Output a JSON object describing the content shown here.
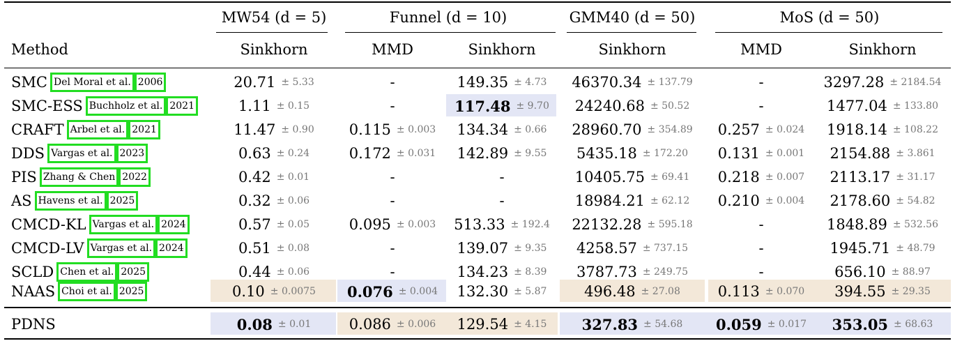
{
  "header": {
    "method_label": "Method",
    "groups": [
      {
        "title": "MW54 (d = 5)",
        "subs": [
          "Sinkhorn"
        ]
      },
      {
        "title": "Funnel (d = 10)",
        "subs": [
          "MMD",
          "Sinkhorn"
        ]
      },
      {
        "title": "GMM40 (d = 50)",
        "subs": [
          "Sinkhorn"
        ]
      },
      {
        "title": "MoS (d = 50)",
        "subs": [
          "MMD",
          "Sinkhorn"
        ]
      }
    ]
  },
  "rows": [
    {
      "method": "SMC",
      "cite_a": "Del Moral et al.",
      "cite_b": "2006",
      "cells": [
        [
          "20.71",
          "± 5.33"
        ],
        [
          "-",
          ""
        ],
        [
          "149.35",
          "± 4.73"
        ],
        [
          "46370.34",
          "± 137.79"
        ],
        [
          "-",
          ""
        ],
        [
          "3297.28",
          "± 2184.54"
        ]
      ]
    },
    {
      "method": "SMC-ESS",
      "cite_a": "Buchholz et al.",
      "cite_b": "2021",
      "cells": [
        [
          "1.11",
          "± 0.15"
        ],
        [
          "-",
          ""
        ],
        [
          "117.48",
          "± 9.70"
        ],
        [
          "24240.68",
          "± 50.52"
        ],
        [
          "-",
          ""
        ],
        [
          "1477.04",
          "± 133.80"
        ]
      ]
    },
    {
      "method": "CRAFT",
      "cite_a": "Arbel et al.",
      "cite_b": "2021",
      "cells": [
        [
          "11.47",
          "± 0.90"
        ],
        [
          "0.115",
          "± 0.003"
        ],
        [
          "134.34",
          "± 0.66"
        ],
        [
          "28960.70",
          "± 354.89"
        ],
        [
          "0.257",
          "± 0.024"
        ],
        [
          "1918.14",
          "± 108.22"
        ]
      ]
    },
    {
      "method": "DDS",
      "cite_a": "Vargas et al.",
      "cite_b": "2023",
      "cells": [
        [
          "0.63",
          "± 0.24"
        ],
        [
          "0.172",
          "± 0.031"
        ],
        [
          "142.89",
          "± 9.55"
        ],
        [
          "5435.18",
          "± 172.20"
        ],
        [
          "0.131",
          "± 0.001"
        ],
        [
          "2154.88",
          "± 3.861"
        ]
      ]
    },
    {
      "method": "PIS",
      "cite_a": "Zhang & Chen",
      "cite_b": "2022",
      "cells": [
        [
          "0.42",
          "± 0.01"
        ],
        [
          "-",
          ""
        ],
        [
          "-",
          ""
        ],
        [
          "10405.75",
          "± 69.41"
        ],
        [
          "0.218",
          "± 0.007"
        ],
        [
          "2113.17",
          "± 31.17"
        ]
      ]
    },
    {
      "method": "AS",
      "cite_a": "Havens et al.",
      "cite_b": "2025",
      "cells": [
        [
          "0.32",
          "± 0.06"
        ],
        [
          "-",
          ""
        ],
        [
          "-",
          ""
        ],
        [
          "18984.21",
          "± 62.12"
        ],
        [
          "0.210",
          "± 0.004"
        ],
        [
          "2178.60",
          "± 54.82"
        ]
      ]
    },
    {
      "method": "CMCD-KL",
      "cite_a": "Vargas et al.",
      "cite_b": "2024",
      "cells": [
        [
          "0.57",
          "± 0.05"
        ],
        [
          "0.095",
          "± 0.003"
        ],
        [
          "513.33",
          "± 192.4"
        ],
        [
          "22132.28",
          "± 595.18"
        ],
        [
          "-",
          ""
        ],
        [
          "1848.89",
          "± 532.56"
        ]
      ]
    },
    {
      "method": "CMCD-LV",
      "cite_a": "Vargas et al.",
      "cite_b": "2024",
      "cells": [
        [
          "0.51",
          "± 0.08"
        ],
        [
          "-",
          ""
        ],
        [
          "139.07",
          "± 9.35"
        ],
        [
          "4258.57",
          "± 737.15"
        ],
        [
          "-",
          ""
        ],
        [
          "1945.71",
          "± 48.79"
        ]
      ]
    },
    {
      "method": "SCLD",
      "cite_a": "Chen et al.",
      "cite_b": "2025",
      "cells": [
        [
          "0.44",
          "± 0.06"
        ],
        [
          "-",
          ""
        ],
        [
          "134.23",
          "± 8.39"
        ],
        [
          "3787.73",
          "± 249.75"
        ],
        [
          "-",
          ""
        ],
        [
          "656.10",
          "± 88.97"
        ]
      ]
    },
    {
      "method": "NAAS",
      "cite_a": "Choi et al.",
      "cite_b": "2025",
      "cells": [
        [
          "0.10",
          "± 0.0075"
        ],
        [
          "0.076",
          "± 0.004"
        ],
        [
          "132.30",
          "± 5.87"
        ],
        [
          "496.48",
          "± 27.08"
        ],
        [
          "0.113",
          "± 0.070"
        ],
        [
          "394.55",
          "± 29.35"
        ]
      ]
    }
  ],
  "final_row": {
    "method": "PDNS",
    "cells": [
      [
        "0.08",
        "± 0.01"
      ],
      [
        "0.086",
        "± 0.006"
      ],
      [
        "129.54",
        "± 4.15"
      ],
      [
        "327.83",
        "± 54.68"
      ],
      [
        "0.059",
        "± 0.017"
      ],
      [
        "353.05",
        "± 68.63"
      ]
    ]
  },
  "highlights": {
    "best_color": "#e3e6f5",
    "second_color": "#f3e8d9",
    "citation_box_color": "#22dd22"
  }
}
